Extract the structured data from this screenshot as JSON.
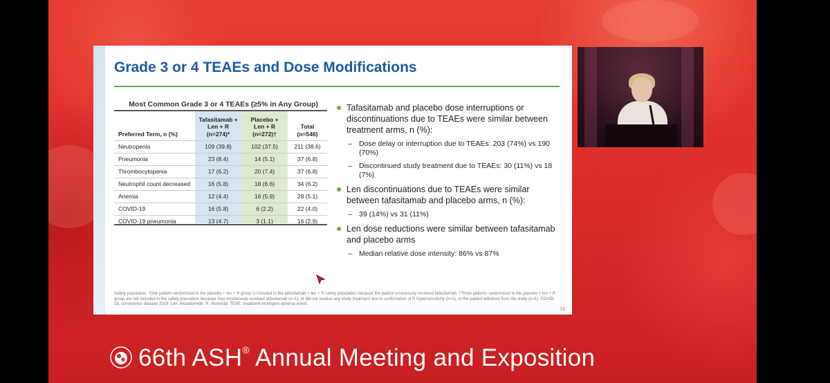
{
  "slide": {
    "title": "Grade 3 or 4 TEAEs and Dose Modifications",
    "table": {
      "caption": "Most Common Grade 3 or 4 TEAEs (≥5% in Any Group)",
      "headers": {
        "term": "Preferred Term, n (%)",
        "tafa_l1": "Tafasitamab +",
        "tafa_l2": "Len + R",
        "tafa_l3": "(n=274)*",
        "plac_l1": "Placebo +",
        "plac_l2": "Len + R",
        "plac_l3": "(n=272)†",
        "total_l1": "Total",
        "total_l2": "(n=546)"
      },
      "rows": [
        {
          "term": "Neutropenia",
          "tafa": "109 (39.8)",
          "plac": "102 (37.5)",
          "total": "211 (38.6)"
        },
        {
          "term": "Pneumonia",
          "tafa": "23 (8.4)",
          "plac": "14 (5.1)",
          "total": "37 (6.8)"
        },
        {
          "term": "Thrombocytopenia",
          "tafa": "17 (6.2)",
          "plac": "20 (7.4)",
          "total": "37 (6.8)"
        },
        {
          "term": "Neutrophil count decreased",
          "tafa": "16 (5.8)",
          "plac": "18 (6.6)",
          "total": "34 (6.2)"
        },
        {
          "term": "Anemia",
          "tafa": "12 (4.4)",
          "plac": "16 (5.9)",
          "total": "28 (5.1)"
        },
        {
          "term": "COVID-19",
          "tafa": "16 (5.8)",
          "plac": "6 (2.2)",
          "total": "22 (4.0)"
        },
        {
          "term": "COVID-19 pneumonia",
          "tafa": "13 (4.7)",
          "plac": "3 (1.1)",
          "total": "16 (2.9)"
        }
      ]
    },
    "bullets": {
      "b1": "Tafasitamab and placebo dose interruptions or discontinuations due to TEAEs were similar between treatment arms, n (%):",
      "b1_s1": "Dose delay or interruption due to TEAEs: 203 (74%) vs 190 (70%)",
      "b1_s2": "Discontinued study treatment due to TEAEs: 30 (11%) vs 18 (7%)",
      "b2": "Len discontinuations due to TEAEs were similar between tafasitamab and placebo arms, n (%):",
      "b2_s1": "39 (14%) vs 31 (11%)",
      "b3": "Len dose reductions were similar between tafasitamab and placebo arms",
      "b3_s1": "Median relative dose intensity: 86% vs 87%"
    },
    "footnote": "Safety population. *One patient randomized to the placebo + len + R group is included in the tafasitamab + len + R safety population because the patient erroneously received tafasitamab. †Three patients randomized to the placebo + len + R group are not included in the safety population because they erroneously received tafasitamab (n=1), or did not receive any study treatment due to confirmation of R hypersensitivity (n=1), or the patient withdrew from the study (n=1). COVID-19, coronavirus disease 2019; Len, lenalidomide; R, rituximab; TEAE, treatment-emergent adverse event.",
    "page_number": "16"
  },
  "footer": {
    "meeting_title": "66th ASH",
    "registered": "®",
    "meeting_suffix": " Annual Meeting and Exposition"
  },
  "colors": {
    "title_blue": "#1f5aa0",
    "accent_green": "#6aa84f",
    "background_red": "#dd2f2a"
  }
}
